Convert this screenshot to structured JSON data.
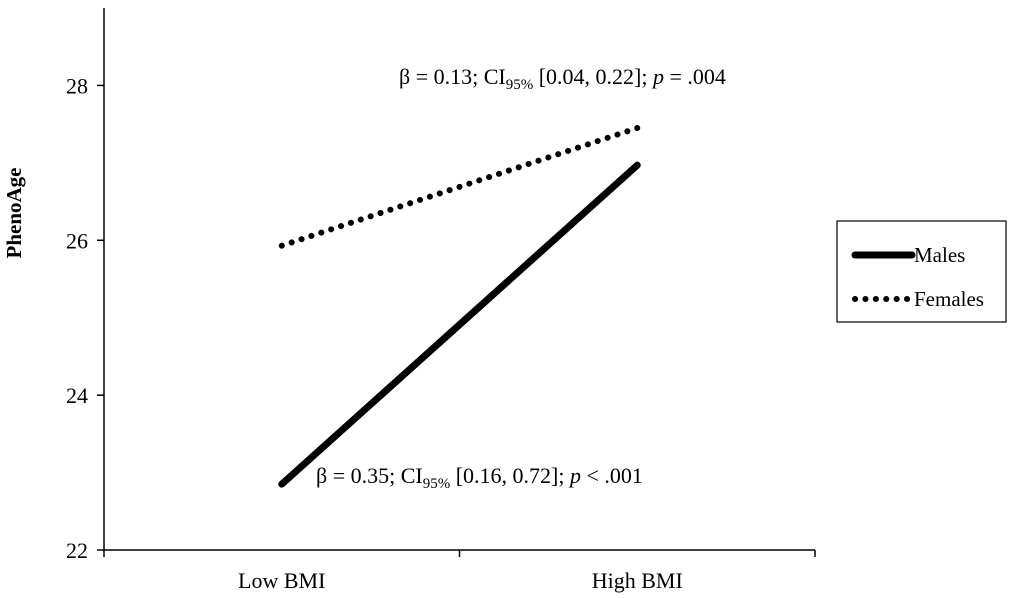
{
  "chart_data": {
    "type": "line",
    "categories": [
      "Low BMI",
      "High BMI"
    ],
    "ylabel": "PhenoAge",
    "xlabel": "",
    "ylim": [
      22,
      29
    ],
    "yticks": [
      22,
      24,
      26,
      28
    ],
    "grid": false,
    "legend_position": "right",
    "series": [
      {
        "name": "Males",
        "values": [
          22.85,
          26.97
        ],
        "style": "solid",
        "color": "#000000"
      },
      {
        "name": "Females",
        "values": [
          25.93,
          27.45
        ],
        "style": "dotted",
        "color": "#000000"
      }
    ],
    "annotations": [
      {
        "series": "Females",
        "pre": "β = 0.13; CI",
        "sub": "95%",
        "mid": " [0.04, 0.22]; ",
        "p": "p",
        "post": " = .004"
      },
      {
        "series": "Males",
        "pre": "β = 0.35; CI",
        "sub": "95%",
        "mid": " [0.16, 0.72]; ",
        "p": "p",
        "post": " < .001"
      }
    ]
  }
}
